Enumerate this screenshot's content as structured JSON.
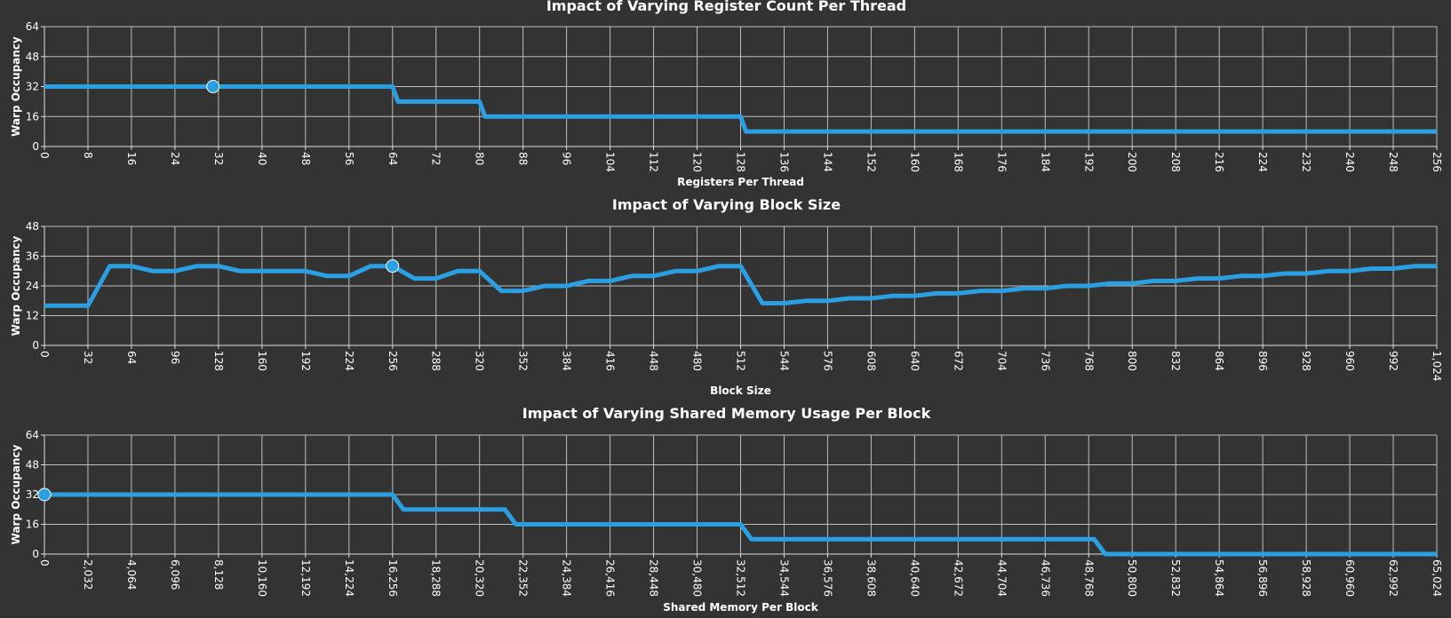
{
  "chart_data": [
    {
      "type": "line",
      "title": "Impact of Varying Register Count Per Thread",
      "xlabel": "Registers Per Thread",
      "ylabel": "Warp Occupancy",
      "xlim": [
        0,
        256
      ],
      "ylim": [
        0,
        64
      ],
      "x_ticks": [
        "0",
        "8",
        "16",
        "24",
        "32",
        "40",
        "48",
        "56",
        "64",
        "72",
        "80",
        "88",
        "96",
        "104",
        "112",
        "120",
        "128",
        "136",
        "144",
        "152",
        "160",
        "168",
        "176",
        "184",
        "192",
        "200",
        "208",
        "216",
        "224",
        "232",
        "240",
        "248",
        "256"
      ],
      "y_ticks": [
        "0",
        "16",
        "32",
        "48",
        "64"
      ],
      "grid": true,
      "color": "#2aa0e3",
      "x": [
        0,
        64,
        65,
        80,
        81,
        128,
        129,
        256
      ],
      "y": [
        32,
        32,
        24,
        24,
        16,
        16,
        8,
        8
      ],
      "marker": {
        "x": 31,
        "y": 32
      }
    },
    {
      "type": "line",
      "title": "Impact of Varying Block Size",
      "xlabel": "Block Size",
      "ylabel": "Warp Occupancy",
      "xlim": [
        0,
        1024
      ],
      "ylim": [
        0,
        48
      ],
      "x_ticks": [
        "0",
        "32",
        "64",
        "96",
        "128",
        "160",
        "192",
        "224",
        "256",
        "288",
        "320",
        "352",
        "384",
        "416",
        "448",
        "480",
        "512",
        "544",
        "576",
        "608",
        "640",
        "672",
        "704",
        "736",
        "768",
        "800",
        "832",
        "864",
        "896",
        "928",
        "960",
        "992",
        "1,024"
      ],
      "y_ticks": [
        "0",
        "12",
        "24",
        "36",
        "48"
      ],
      "grid": true,
      "color": "#2aa0e3",
      "x": [
        0,
        32,
        48,
        64,
        80,
        96,
        112,
        128,
        144,
        160,
        176,
        192,
        208,
        224,
        240,
        256,
        272,
        288,
        304,
        320,
        336,
        352,
        368,
        384,
        400,
        416,
        432,
        448,
        464,
        480,
        496,
        512,
        528,
        544,
        560,
        576,
        592,
        608,
        624,
        640,
        656,
        672,
        688,
        704,
        720,
        736,
        752,
        768,
        784,
        800,
        816,
        832,
        848,
        864,
        880,
        896,
        912,
        928,
        944,
        960,
        976,
        992,
        1008,
        1024
      ],
      "y": [
        16,
        16,
        32,
        32,
        30,
        30,
        32,
        32,
        30,
        30,
        30,
        30,
        28,
        28,
        32,
        32,
        27,
        27,
        30,
        30,
        22,
        22,
        24,
        24,
        26,
        26,
        28,
        28,
        30,
        30,
        32,
        32,
        17,
        17,
        18,
        18,
        19,
        19,
        20,
        20,
        21,
        21,
        22,
        22,
        23,
        23,
        24,
        24,
        25,
        25,
        26,
        26,
        27,
        27,
        28,
        28,
        29,
        29,
        30,
        30,
        31,
        31,
        32,
        32
      ],
      "marker": {
        "x": 256,
        "y": 32
      }
    },
    {
      "type": "line",
      "title": "Impact of Varying Shared Memory Usage Per Block",
      "xlabel": "Shared Memory Per Block",
      "ylabel": "Warp Occupancy",
      "xlim": [
        0,
        65024
      ],
      "ylim": [
        0,
        64
      ],
      "x_ticks": [
        "0",
        "2,032",
        "4,064",
        "6,096",
        "8,128",
        "10,160",
        "12,192",
        "14,224",
        "16,256",
        "18,288",
        "20,320",
        "22,352",
        "24,384",
        "26,416",
        "28,448",
        "30,480",
        "32,512",
        "34,544",
        "36,576",
        "38,608",
        "40,640",
        "42,672",
        "44,704",
        "46,736",
        "48,768",
        "50,800",
        "52,832",
        "54,864",
        "56,896",
        "58,928",
        "60,960",
        "62,992",
        "65,024"
      ],
      "y_ticks": [
        "0",
        "16",
        "32",
        "48",
        "64"
      ],
      "grid": true,
      "color": "#2aa0e3",
      "x": [
        0,
        16256,
        16768,
        21504,
        22016,
        32512,
        33024,
        49024,
        49536,
        65024
      ],
      "y": [
        32,
        32,
        24,
        24,
        16,
        16,
        8,
        8,
        0,
        0
      ],
      "marker": {
        "x": 0,
        "y": 32
      }
    }
  ]
}
